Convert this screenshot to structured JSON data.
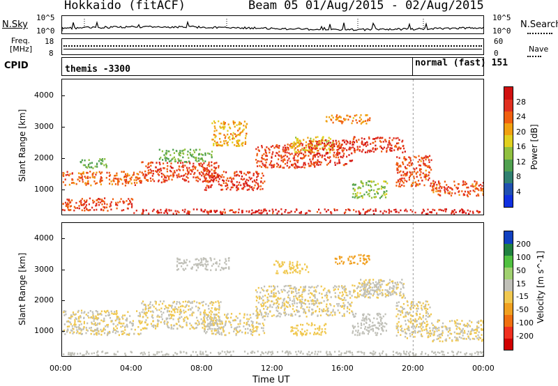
{
  "header": {
    "station": "Hokkaido (fitACF)",
    "beam_date": "Beam 05 01/Aug/2015 - 02/Aug/2015"
  },
  "noise_panel": {
    "left_label": "N.Sky",
    "right_label": "N.Search",
    "tick_top": "10^5",
    "tick_bottom": "10^0"
  },
  "freq_panel": {
    "label_line1": "Freq.",
    "label_line2": "[MHz]",
    "left_tick_top": "18",
    "left_tick_bottom": "8",
    "right_label": "Nave",
    "right_tick_top": "60",
    "right_tick_bottom": "0"
  },
  "cpid_panel": {
    "label": "CPID",
    "segments": [
      {
        "name": "themis -3300",
        "start_hour": 0,
        "end_hour": 20
      },
      {
        "name": "normal (fast) 151",
        "start_hour": 20,
        "end_hour": 24
      }
    ]
  },
  "colors": {
    "scatter_gray": "#c0c0b8",
    "ground_green": "#40c040"
  },
  "chart_data": [
    {
      "type": "heatmap",
      "name": "Power",
      "ylabel": "Slant Range [km]",
      "ylim": [
        200,
        4500
      ],
      "yticks": [
        1000,
        2000,
        3000,
        4000
      ],
      "xlim": [
        0,
        24
      ],
      "colorbar": {
        "label": "Power [dB]",
        "range": [
          0,
          32
        ],
        "ticks": [
          4,
          8,
          12,
          16,
          20,
          24,
          28
        ],
        "colors": [
          "#1030e0",
          "#2050b0",
          "#308070",
          "#50a050",
          "#90c040",
          "#e0d020",
          "#f0a010",
          "#f06010",
          "#e03020",
          "#d01010"
        ]
      },
      "bands": [
        {
          "start": 0.0,
          "end": 4.5,
          "low": 1150,
          "high": 1600,
          "value": 24
        },
        {
          "start": 1.0,
          "end": 2.5,
          "low": 1700,
          "high": 2000,
          "value": 12
        },
        {
          "start": 4.5,
          "end": 9.0,
          "low": 1250,
          "high": 1900,
          "value": 26
        },
        {
          "start": 5.5,
          "end": 8.5,
          "low": 1900,
          "high": 2300,
          "value": 13
        },
        {
          "start": 8.0,
          "end": 11.5,
          "low": 1000,
          "high": 1600,
          "value": 27
        },
        {
          "start": 8.5,
          "end": 10.5,
          "low": 2400,
          "high": 3200,
          "value": 20
        },
        {
          "start": 11.0,
          "end": 14.5,
          "low": 1700,
          "high": 2500,
          "value": 26
        },
        {
          "start": 13.0,
          "end": 15.5,
          "low": 2200,
          "high": 2700,
          "value": 18
        },
        {
          "start": 14.0,
          "end": 16.5,
          "low": 1800,
          "high": 2600,
          "value": 27
        },
        {
          "start": 15.0,
          "end": 17.5,
          "low": 3100,
          "high": 3400,
          "value": 22
        },
        {
          "start": 16.5,
          "end": 19.5,
          "low": 2200,
          "high": 2700,
          "value": 27
        },
        {
          "start": 19.0,
          "end": 21.0,
          "low": 1100,
          "high": 2100,
          "value": 25
        },
        {
          "start": 21.0,
          "end": 24.0,
          "low": 800,
          "high": 1300,
          "value": 25
        },
        {
          "start": 0.0,
          "end": 4.0,
          "low": 350,
          "high": 750,
          "value": 26
        },
        {
          "start": 16.5,
          "end": 18.5,
          "low": 750,
          "high": 1300,
          "value": 14
        },
        {
          "start": 4.0,
          "end": 24.0,
          "low": 250,
          "high": 400,
          "value": 28
        }
      ]
    },
    {
      "type": "heatmap",
      "name": "Velocity",
      "ylabel": "Slant Range [km]",
      "ylim": [
        200,
        4500
      ],
      "yticks": [
        1000,
        2000,
        3000,
        4000
      ],
      "xlim": [
        0,
        24
      ],
      "xticks": [
        "00:00",
        "04:00",
        "08:00",
        "12:00",
        "16:00",
        "20:00",
        "00:00"
      ],
      "xlabel": "Time UT",
      "colorbar": {
        "label": "Velocity [m s^-1]",
        "range": [
          -250,
          250
        ],
        "ticks": [
          200,
          100,
          50,
          15,
          -15,
          -50,
          -100,
          -200
        ],
        "colors": [
          "#d00000",
          "#f03020",
          "#f07010",
          "#f0a020",
          "#f0c850",
          "#c0c0b8",
          "#a0d070",
          "#50c040",
          "#208040",
          "#1040c0"
        ]
      },
      "bands": [
        {
          "start": 0.0,
          "end": 4.5,
          "low": 900,
          "high": 1700,
          "value": 0
        },
        {
          "start": 4.5,
          "end": 9.0,
          "low": 1100,
          "high": 2000,
          "value": 0
        },
        {
          "start": 8.0,
          "end": 11.5,
          "low": 900,
          "high": 1600,
          "value": 0
        },
        {
          "start": 11.0,
          "end": 16.5,
          "low": 1500,
          "high": 2500,
          "value": 0
        },
        {
          "start": 16.5,
          "end": 19.5,
          "low": 2100,
          "high": 2700,
          "value": 0
        },
        {
          "start": 19.0,
          "end": 21.0,
          "low": 800,
          "high": 2000,
          "value": 0
        },
        {
          "start": 21.0,
          "end": 24.0,
          "low": 700,
          "high": 1400,
          "value": 0
        },
        {
          "start": 6.5,
          "end": 9.5,
          "low": 3000,
          "high": 3400,
          "value": 5
        },
        {
          "start": 12.0,
          "end": 14.0,
          "low": 2900,
          "high": 3300,
          "value": -20
        },
        {
          "start": 15.5,
          "end": 17.5,
          "low": 3200,
          "high": 3500,
          "value": -60
        },
        {
          "start": 16.5,
          "end": 18.5,
          "low": 900,
          "high": 1600,
          "value": 40
        },
        {
          "start": 17.0,
          "end": 19.0,
          "low": 2200,
          "high": 2600,
          "value": 40
        },
        {
          "start": 0.0,
          "end": 24.0,
          "low": 250,
          "high": 380,
          "value": 40
        },
        {
          "start": 13.0,
          "end": 15.0,
          "low": 900,
          "high": 1300,
          "value": -30
        }
      ]
    }
  ]
}
